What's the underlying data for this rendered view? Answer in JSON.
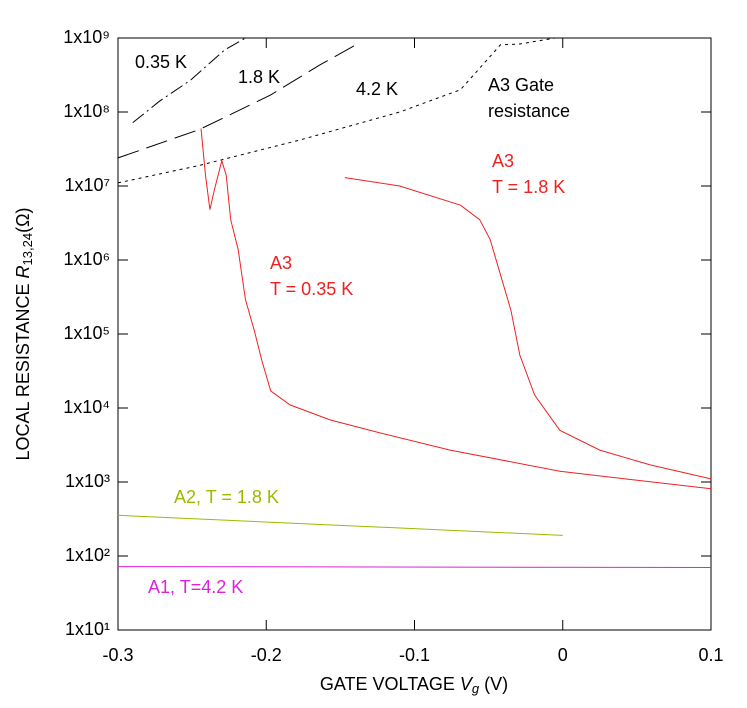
{
  "chart_data": {
    "type": "line",
    "xlabel": [
      "GATE VOLTAGE ",
      "V",
      "g",
      " (V)"
    ],
    "ylabel": [
      "LOCAL RESISTANCE ",
      "R",
      "13,24",
      "(Ω)"
    ],
    "log_y": true,
    "xlim": [
      -0.3,
      0.1
    ],
    "xticks": [
      -0.3,
      -0.2,
      -0.1,
      0,
      0.1
    ],
    "ylim": [
      10,
      1000000000
    ],
    "yticks": [
      {
        "value": 10,
        "label": "1x10¹"
      },
      {
        "value": 100,
        "label": "1x10²"
      },
      {
        "value": 1000,
        "label": "1x10³"
      },
      {
        "value": 10000,
        "label": "1x10⁴"
      },
      {
        "value": 100000,
        "label": "1x10⁵"
      },
      {
        "value": 1000000,
        "label": "1x10⁶"
      },
      {
        "value": 10000000,
        "label": "1x10⁷"
      },
      {
        "value": 100000000,
        "label": "1x10⁸"
      },
      {
        "value": 1000000000,
        "label": "1x10⁹"
      }
    ],
    "series": [
      {
        "color": "#000000",
        "dash": "dashdot",
        "x": [
          -0.29,
          -0.272,
          -0.251,
          -0.228,
          -0.214
        ],
        "values": [
          72000000,
          140000000,
          270000000,
          690000000,
          1000000000
        ]
      },
      {
        "color": "#000000",
        "dash": "longdash",
        "x": [
          -0.3,
          -0.245,
          -0.197,
          -0.164,
          -0.14
        ],
        "values": [
          24000000,
          58000000,
          170000000,
          430000000,
          800000000
        ]
      },
      {
        "color": "#000000",
        "dash": "dot",
        "x": [
          -0.3,
          -0.245,
          -0.177,
          -0.11,
          -0.069,
          -0.042,
          -0.029,
          -0.005
        ],
        "values": [
          11000000,
          19000000,
          42000000,
          100000000,
          200000000,
          810000000,
          830000000,
          1000000000
        ]
      },
      {
        "color": "#ee2222",
        "dash": "solid",
        "x": [
          -0.244,
          -0.241,
          -0.238,
          -0.235,
          -0.23,
          -0.227,
          -0.224,
          -0.219,
          -0.214,
          -0.208,
          -0.203,
          -0.197,
          -0.184,
          -0.157,
          -0.123,
          -0.076,
          -0.002,
          0.1
        ],
        "values": [
          60000000,
          14000000,
          4800000,
          8900000,
          22000000,
          14000000,
          3500000,
          1400000,
          290000,
          110000,
          44000,
          17000,
          11000,
          6900,
          4600,
          2700,
          1400,
          810
        ]
      },
      {
        "color": "#ee2222",
        "dash": "solid",
        "x": [
          -0.147,
          -0.11,
          -0.069,
          -0.056,
          -0.049,
          -0.042,
          -0.035,
          -0.029,
          -0.019,
          -0.002,
          0.025,
          0.059,
          0.1
        ],
        "values": [
          13000000,
          10000000,
          5500000,
          3500000,
          1900000,
          630000,
          210000,
          52000,
          15000,
          5000,
          2700,
          1700,
          1100
        ]
      },
      {
        "color": "#99bb00",
        "dash": "solid",
        "x": [
          -0.3,
          0
        ],
        "values": [
          355,
          190
        ]
      },
      {
        "color": "#dd22dd",
        "dash": "solid",
        "x": [
          -0.3,
          0.1
        ],
        "values": [
          72,
          70
        ]
      }
    ],
    "annotations": [
      {
        "text": "0.35 K",
        "color": "#000000"
      },
      {
        "text": "1.8 K",
        "color": "#000000"
      },
      {
        "text": "4.2 K",
        "color": "#000000"
      },
      {
        "text": "A3 Gate",
        "color": "#000000"
      },
      {
        "text": "resistance",
        "color": "#000000"
      },
      {
        "text": "A3",
        "color": "#ee2222"
      },
      {
        "text": "T = 1.8 K",
        "color": "#ee2222"
      },
      {
        "text": "A3",
        "color": "#ee2222"
      },
      {
        "text": "T = 0.35 K",
        "color": "#ee2222"
      },
      {
        "text": "A2, T = 1.8 K",
        "color": "#99bb00"
      },
      {
        "text": "A1, T=4.2 K",
        "color": "#dd22dd"
      }
    ]
  }
}
